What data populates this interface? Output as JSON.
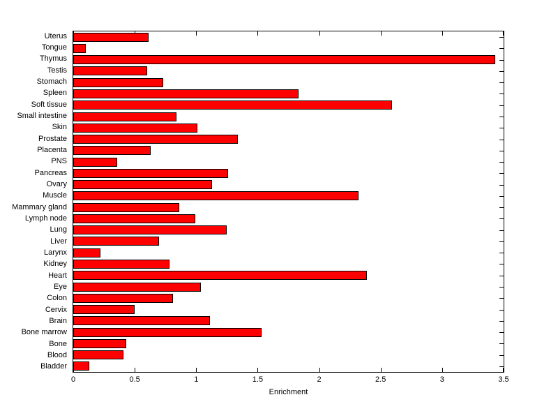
{
  "chart_data": {
    "type": "bar",
    "orientation": "horizontal",
    "title": "",
    "xlabel": "Enrichment",
    "ylabel": "",
    "xlim": [
      0,
      3.5
    ],
    "grid": false,
    "legend": null,
    "bar_color": "#ff0000",
    "bar_edge_color": "#000000",
    "axis_color": "#000000",
    "background_color": "#ffffff",
    "categories_top_to_bottom": [
      "Uterus",
      "Tongue",
      "Thymus",
      "Testis",
      "Stomach",
      "Spleen",
      "Soft tissue",
      "Small intestine",
      "Skin",
      "Prostate",
      "Placenta",
      "PNS",
      "Pancreas",
      "Ovary",
      "Muscle",
      "Mammary gland",
      "Lymph node",
      "Lung",
      "Liver",
      "Larynx",
      "Kidney",
      "Heart",
      "Eye",
      "Colon",
      "Cervix",
      "Brain",
      "Bone marrow",
      "Bone",
      "Blood",
      "Bladder"
    ],
    "values": [
      0.61,
      0.1,
      3.43,
      0.6,
      0.73,
      1.83,
      2.59,
      0.84,
      1.01,
      1.34,
      0.63,
      0.36,
      1.26,
      1.13,
      2.32,
      0.86,
      0.99,
      1.25,
      0.7,
      0.22,
      0.78,
      2.39,
      1.04,
      0.81,
      0.5,
      1.11,
      1.53,
      0.43,
      0.41,
      0.13
    ],
    "xticks": [
      0,
      0.5,
      1,
      1.5,
      2,
      2.5,
      3,
      3.5
    ],
    "xtick_labels": [
      "0",
      "0.5",
      "1",
      "1.5",
      "2",
      "2.5",
      "3",
      "3.5"
    ]
  }
}
